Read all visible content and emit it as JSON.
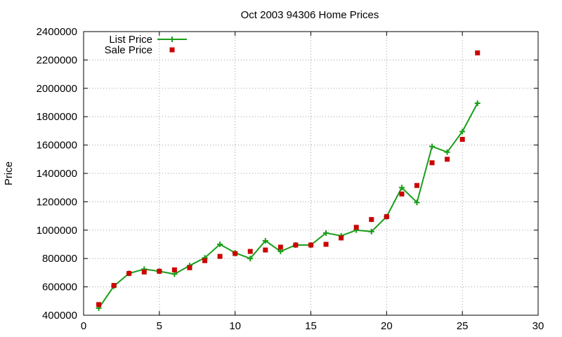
{
  "chart_data": {
    "type": "line",
    "title": "Oct 2003 94306 Home Prices",
    "xlabel": "",
    "ylabel": "Price",
    "xlim": [
      0,
      30
    ],
    "ylim": [
      400000,
      2400000
    ],
    "xticks": [
      "0",
      "5",
      "10",
      "15",
      "20",
      "25",
      "30"
    ],
    "yticks": [
      "400000",
      "600000",
      "800000",
      "1000000",
      "1200000",
      "1400000",
      "1600000",
      "1800000",
      "2000000",
      "2200000",
      "2400000"
    ],
    "grid": true,
    "legend_position": "top-left",
    "series": [
      {
        "name": "List Price",
        "style": "line-with-plus-markers",
        "color": "#1a9e1a",
        "x": [
          1,
          2,
          3,
          4,
          5,
          6,
          7,
          8,
          9,
          10,
          11,
          12,
          13,
          14,
          15,
          16,
          17,
          18,
          19,
          20,
          21,
          22,
          23,
          24,
          25,
          26
        ],
        "values": [
          450000,
          605000,
          695000,
          725000,
          710000,
          690000,
          750000,
          805000,
          900000,
          840000,
          800000,
          925000,
          850000,
          895000,
          895000,
          980000,
          960000,
          1000000,
          990000,
          1095000,
          1300000,
          1195000,
          1590000,
          1550000,
          1695000,
          1895000
        ]
      },
      {
        "name": "Sale Price",
        "style": "square-markers",
        "color": "#cc0000",
        "x": [
          1,
          2,
          3,
          4,
          5,
          6,
          7,
          8,
          9,
          10,
          11,
          12,
          13,
          14,
          15,
          16,
          17,
          18,
          19,
          20,
          21,
          22,
          23,
          24,
          25,
          26
        ],
        "values": [
          475000,
          610000,
          695000,
          705000,
          710000,
          720000,
          735000,
          785000,
          815000,
          835000,
          850000,
          860000,
          880000,
          895000,
          895000,
          900000,
          945000,
          1020000,
          1075000,
          1095000,
          1255000,
          1315000,
          1475000,
          1500000,
          1640000,
          2250000
        ]
      }
    ]
  }
}
